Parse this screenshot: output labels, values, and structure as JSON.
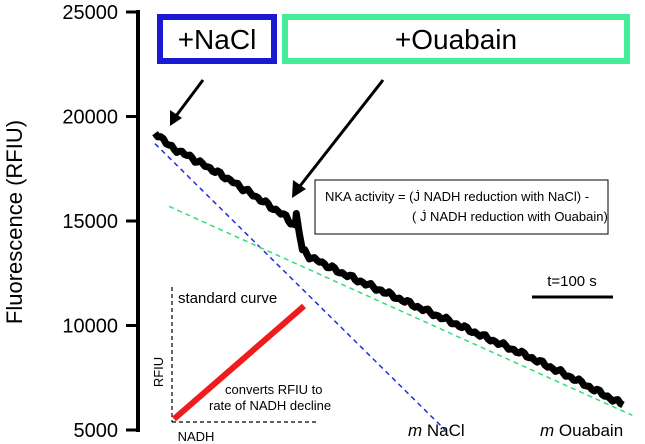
{
  "chart_data": {
    "type": "line",
    "title": "",
    "ylabel": "Fluorescence (RFIU)",
    "xlabel": "",
    "ylim": [
      5000,
      25000
    ],
    "yticks": [
      5000,
      10000,
      15000,
      20000,
      25000
    ],
    "grid": false,
    "series": [
      {
        "name": "",
        "x": [
          0,
          0.03,
          0.08,
          0.15,
          0.22,
          0.28,
          0.3,
          0.302,
          0.315,
          0.33,
          0.4,
          0.5,
          0.6,
          0.7,
          0.8,
          0.9,
          1.0
        ],
        "y": [
          19200,
          18600,
          18000,
          17100,
          16100,
          15200,
          14700,
          15300,
          13600,
          13300,
          12500,
          11500,
          10500,
          9500,
          8500,
          7400,
          6200
        ]
      }
    ],
    "fits": [
      {
        "label": "NaCl",
        "color": "#1f2fd6",
        "x": [
          0,
          0.62
        ],
        "y": [
          18700,
          5000
        ]
      },
      {
        "label": "Ouabain",
        "color": "#33dd77",
        "x": [
          0.03,
          1.02
        ],
        "y": [
          15700,
          5700
        ]
      }
    ],
    "annotations": {
      "nacl_box": "+NaCl",
      "ouabain_box": "+Ouabain",
      "nka_line1": "NKA activity =  (J̇ NADH reduction with NaCl) -",
      "nka_line2": "( J̇ NADH reduction with Ouabain)",
      "timescale": "t=100 s",
      "standard_curve": "standard curve",
      "inset_ylabel": "RFIU",
      "inset_xlabel": "NADH",
      "converts_line1": "converts RFIU to",
      "converts_line2": "rate of NADH decline",
      "m_symbol": "m",
      "nacl_slope": " NaCl",
      "ouabain_slope": " Ouabain"
    },
    "colors": {
      "nacl_box": "#1a1ad2",
      "ouabain_box": "#44ee99",
      "standard_curve_line": "#ee1c1c",
      "trace": "#000000"
    }
  }
}
